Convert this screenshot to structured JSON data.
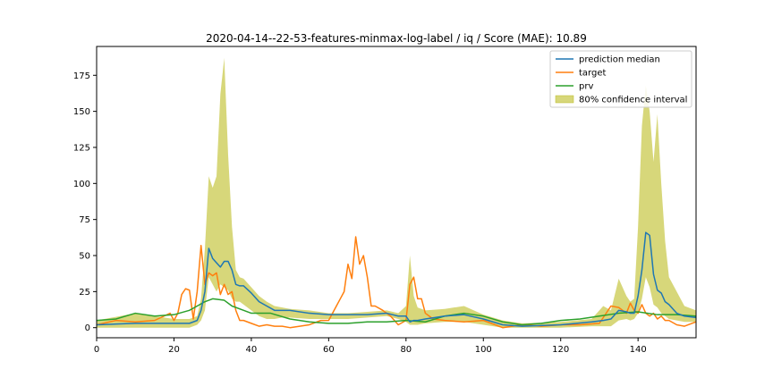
{
  "chart_data": {
    "type": "line",
    "title": "2020-04-14--22-53-features-minmax-log-label / iq / Score (MAE): 10.89",
    "xlabel": "",
    "ylabel": "",
    "xlim": [
      0,
      155
    ],
    "ylim": [
      -7,
      195
    ],
    "xticks": [
      0,
      20,
      40,
      60,
      80,
      100,
      120,
      140
    ],
    "yticks": [
      0,
      25,
      50,
      75,
      100,
      125,
      150,
      175
    ],
    "grid": false,
    "legend_position": "top-right",
    "colors": {
      "prediction_median": "#1f77b4",
      "target": "#ff7f0e",
      "prv": "#2ca02c",
      "interval": "#bcbd22"
    },
    "band": {
      "name": "80% confidence interval",
      "x": [
        0,
        10,
        20,
        24,
        26,
        27,
        28,
        29,
        30,
        31,
        32,
        33,
        34,
        35,
        36,
        37,
        38,
        40,
        42,
        44,
        46,
        48,
        50,
        55,
        60,
        65,
        70,
        75,
        78,
        80,
        81,
        82,
        83,
        85,
        90,
        95,
        100,
        105,
        110,
        120,
        128,
        131,
        133,
        135,
        137,
        138,
        139,
        140,
        141,
        142,
        143,
        144,
        145,
        146,
        147,
        148,
        150,
        152,
        155
      ],
      "upper": [
        5,
        10,
        6,
        6,
        8,
        20,
        55,
        105,
        97,
        105,
        162,
        187,
        120,
        70,
        40,
        35,
        34,
        28,
        22,
        18,
        15,
        14,
        13,
        12,
        10,
        10,
        11,
        12,
        10,
        15,
        50,
        22,
        14,
        12,
        13,
        15,
        9,
        5,
        3,
        4,
        6,
        15,
        12,
        34,
        22,
        18,
        20,
        70,
        140,
        168,
        150,
        115,
        148,
        100,
        60,
        35,
        25,
        15,
        12
      ],
      "lower": [
        0,
        0,
        0,
        0,
        2,
        5,
        12,
        35,
        30,
        25,
        30,
        28,
        26,
        20,
        18,
        18,
        16,
        12,
        8,
        6,
        6,
        7,
        7,
        6,
        6,
        6,
        7,
        8,
        6,
        4,
        2,
        2,
        2,
        3,
        4,
        4,
        2,
        0,
        0,
        0,
        1,
        1,
        1,
        5,
        6,
        5,
        6,
        10,
        20,
        35,
        28,
        16,
        14,
        10,
        8,
        6,
        5,
        4,
        4
      ]
    },
    "series": [
      {
        "name": "prediction median",
        "x": [
          0,
          10,
          20,
          24,
          26,
          27,
          28,
          29,
          30,
          31,
          32,
          33,
          34,
          35,
          36,
          37,
          38,
          40,
          42,
          44,
          46,
          48,
          50,
          55,
          60,
          65,
          70,
          75,
          78,
          80,
          81,
          82,
          83,
          85,
          90,
          95,
          100,
          105,
          110,
          120,
          128,
          131,
          133,
          135,
          137,
          138,
          139,
          140,
          141,
          142,
          143,
          144,
          145,
          146,
          147,
          148,
          150,
          152,
          155
        ],
        "values": [
          2,
          3,
          3,
          3,
          5,
          12,
          25,
          55,
          48,
          45,
          42,
          46,
          46,
          40,
          30,
          29,
          29,
          24,
          18,
          15,
          12,
          12,
          12,
          10,
          9,
          9,
          9,
          10,
          8,
          8,
          4,
          5,
          5,
          6,
          8,
          9,
          6,
          2,
          1,
          2,
          4,
          5,
          6,
          12,
          11,
          10,
          10,
          22,
          40,
          66,
          64,
          37,
          26,
          24,
          18,
          16,
          10,
          8,
          7
        ]
      },
      {
        "name": "target",
        "x": [
          0,
          5,
          10,
          15,
          19,
          20,
          21,
          22,
          23,
          24,
          25,
          26,
          27,
          28,
          29,
          30,
          31,
          32,
          33,
          34,
          35,
          36,
          37,
          38,
          40,
          42,
          44,
          46,
          48,
          50,
          55,
          58,
          60,
          62,
          63,
          64,
          65,
          66,
          67,
          68,
          69,
          70,
          71,
          72,
          74,
          76,
          78,
          80,
          81,
          82,
          83,
          84,
          85,
          87,
          90,
          95,
          100,
          105,
          110,
          115,
          120,
          125,
          130,
          133,
          135,
          137,
          138,
          139,
          140,
          141,
          142,
          143,
          144,
          145,
          146,
          147,
          148,
          150,
          152,
          155
        ],
        "values": [
          2,
          5,
          4,
          5,
          10,
          5,
          10,
          23,
          27,
          26,
          6,
          25,
          57,
          30,
          38,
          36,
          38,
          23,
          30,
          23,
          25,
          12,
          5,
          5,
          3,
          1,
          2,
          1,
          1,
          0,
          2,
          5,
          5,
          15,
          20,
          25,
          44,
          34,
          63,
          44,
          50,
          35,
          15,
          15,
          12,
          8,
          2,
          5,
          30,
          35,
          20,
          20,
          10,
          6,
          5,
          4,
          5,
          0,
          2,
          1,
          2,
          2,
          3,
          15,
          14,
          10,
          17,
          12,
          10,
          16,
          10,
          8,
          10,
          6,
          8,
          5,
          5,
          2,
          1,
          4
        ]
      },
      {
        "name": "prv",
        "x": [
          0,
          5,
          10,
          15,
          20,
          24,
          26,
          28,
          30,
          33,
          35,
          38,
          40,
          45,
          50,
          55,
          60,
          65,
          70,
          75,
          80,
          85,
          90,
          95,
          100,
          105,
          110,
          115,
          120,
          125,
          130,
          135,
          140,
          145,
          150,
          155
        ],
        "values": [
          5,
          6,
          10,
          8,
          9,
          12,
          15,
          18,
          20,
          19,
          15,
          12,
          10,
          10,
          6,
          4,
          3,
          3,
          4,
          4,
          5,
          4,
          8,
          10,
          8,
          4,
          2,
          3,
          5,
          6,
          8,
          10,
          11,
          9,
          9,
          8
        ]
      }
    ]
  }
}
